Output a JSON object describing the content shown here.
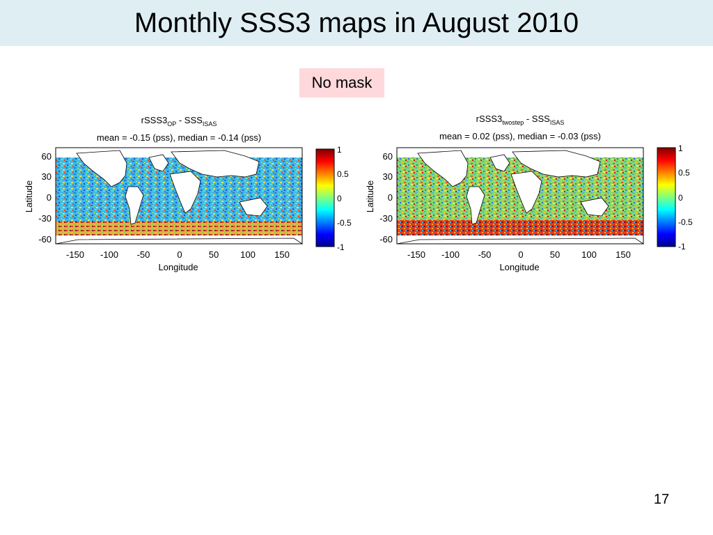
{
  "slide": {
    "title": "Monthly SSS3 maps in August 2010",
    "mask_label": "No mask",
    "page_number": "17"
  },
  "maps": [
    {
      "title_main": "rSSS3",
      "title_sub1": "OP",
      "title_mid": " - SSS",
      "title_sub2": "ISAS",
      "subtitle": "mean = -0.15 (pss), median = -0.14 (pss)",
      "xlabel": "Longitude",
      "ylabel": "Latitude",
      "x_ticks": [
        "-150",
        "-100",
        "-50",
        "0",
        "50",
        "100",
        "150"
      ],
      "y_ticks": [
        "60",
        "30",
        "0",
        "-30",
        "-60"
      ],
      "colorbar_ticks": [
        "1",
        "0.5",
        "0",
        "-0.5",
        "-1"
      ]
    },
    {
      "title_main": "rSSS3",
      "title_sub1": "twostep",
      "title_mid": " - SSS",
      "title_sub2": "ISAS",
      "subtitle": "mean = 0.02 (pss), median = -0.03 (pss)",
      "xlabel": "Longitude",
      "ylabel": "Latitude",
      "x_ticks": [
        "-150",
        "-100",
        "-50",
        "0",
        "50",
        "100",
        "150"
      ],
      "y_ticks": [
        "60",
        "30",
        "0",
        "-30",
        "-60"
      ],
      "colorbar_ticks": [
        "1",
        "0.5",
        "0",
        "-0.5",
        "-1"
      ]
    }
  ]
}
